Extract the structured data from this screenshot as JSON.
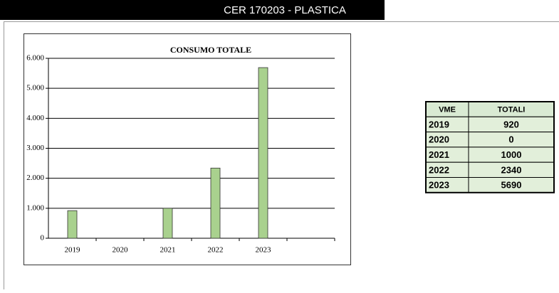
{
  "header": {
    "title": "CER 170203 - PLASTICA"
  },
  "chart_data": {
    "type": "bar",
    "title": "CONSUMO TOTALE",
    "categories": [
      "2019",
      "2020",
      "2021",
      "2022",
      "2023",
      null
    ],
    "values": [
      920,
      0,
      1000,
      2340,
      5690,
      null
    ],
    "color": "#a9d18e",
    "ylim": [
      0,
      6000
    ],
    "yticks": [
      0,
      {
        "value": 1000,
        "label": "1.000"
      },
      {
        "value": 2000,
        "label": "2.000"
      },
      {
        "value": 3000,
        "label": "3.000"
      },
      {
        "value": 4000,
        "label": "4.000"
      },
      {
        "value": 5000,
        "label": "5.000"
      },
      {
        "value": 6000,
        "label": "6.000"
      }
    ],
    "grid": true
  },
  "table": {
    "header": [
      "VME",
      "TOTALI"
    ],
    "rows": [
      [
        "2019",
        920
      ],
      [
        "2020",
        0
      ],
      [
        "2021",
        1000
      ],
      [
        "2022",
        2340
      ],
      [
        "2023",
        5690
      ]
    ]
  }
}
